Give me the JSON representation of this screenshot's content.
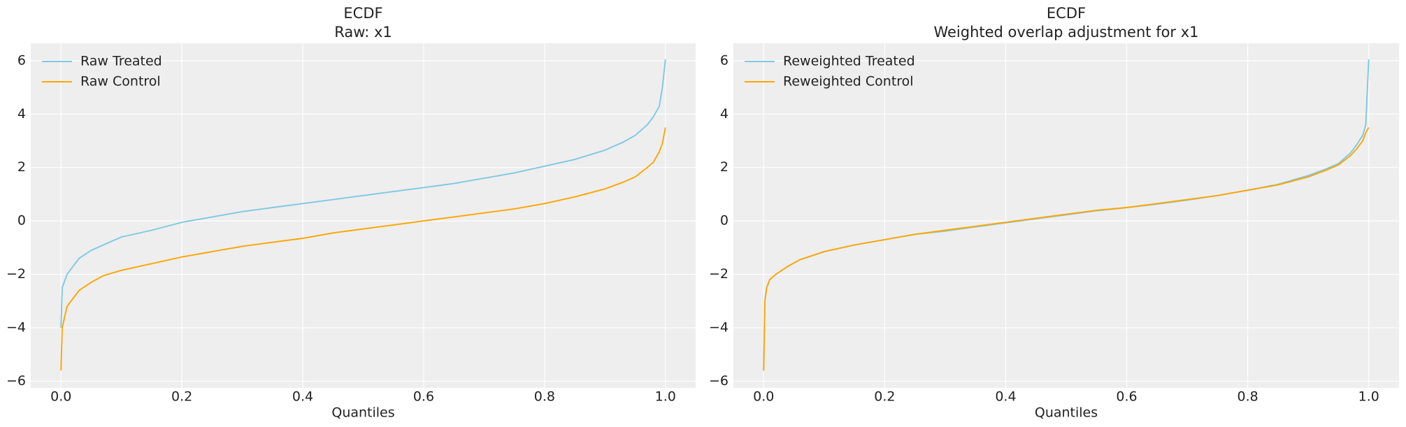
{
  "chart_data": [
    {
      "type": "line",
      "title": "ECDF",
      "subtitle": "Raw: x1",
      "xlabel": "Quantiles",
      "x": [
        0,
        0.002,
        0.01,
        0.02,
        0.03,
        0.05,
        0.07,
        0.1,
        0.15,
        0.2,
        0.25,
        0.3,
        0.35,
        0.4,
        0.45,
        0.5,
        0.55,
        0.6,
        0.65,
        0.7,
        0.75,
        0.8,
        0.85,
        0.9,
        0.93,
        0.95,
        0.97,
        0.98,
        0.99,
        0.995,
        1.0
      ],
      "series": [
        {
          "name": "Raw Treated",
          "color": "#7ec8e3",
          "values": [
            -4.0,
            -2.5,
            -2.0,
            -1.7,
            -1.4,
            -1.1,
            -0.9,
            -0.6,
            -0.35,
            -0.05,
            0.15,
            0.35,
            0.5,
            0.65,
            0.8,
            0.95,
            1.1,
            1.25,
            1.4,
            1.6,
            1.8,
            2.05,
            2.3,
            2.65,
            2.95,
            3.2,
            3.6,
            3.9,
            4.3,
            5.0,
            6.05
          ]
        },
        {
          "name": "Raw Control",
          "color": "#ffa500",
          "values": [
            -5.6,
            -4.0,
            -3.2,
            -2.9,
            -2.6,
            -2.3,
            -2.05,
            -1.85,
            -1.6,
            -1.35,
            -1.15,
            -0.95,
            -0.8,
            -0.65,
            -0.45,
            -0.3,
            -0.15,
            0.0,
            0.15,
            0.3,
            0.45,
            0.65,
            0.9,
            1.2,
            1.45,
            1.65,
            2.0,
            2.2,
            2.6,
            2.9,
            3.5
          ]
        }
      ],
      "xlim": [
        -0.05,
        1.05
      ],
      "ylim": [
        -6.25,
        6.65
      ],
      "xticks": [
        {
          "value": 0,
          "label": "0.0"
        },
        0.2,
        0.4,
        0.6,
        0.8,
        {
          "value": 1,
          "label": "1.0"
        }
      ],
      "yticks": [
        {
          "value": -6,
          "label": "−6"
        },
        {
          "value": -4,
          "label": "−4"
        },
        {
          "value": -2,
          "label": "−2"
        },
        0,
        2,
        4,
        6
      ],
      "grid": true,
      "legend": "upper left"
    },
    {
      "type": "line",
      "title": "ECDF",
      "subtitle": "Weighted overlap adjustment for x1",
      "xlabel": "Quantiles",
      "x": [
        0,
        0.002,
        0.005,
        0.01,
        0.02,
        0.04,
        0.06,
        0.1,
        0.15,
        0.2,
        0.25,
        0.3,
        0.35,
        0.4,
        0.45,
        0.5,
        0.55,
        0.6,
        0.65,
        0.7,
        0.75,
        0.8,
        0.85,
        0.9,
        0.93,
        0.95,
        0.97,
        0.98,
        0.99,
        0.995,
        1.0
      ],
      "series": [
        {
          "name": "Reweighted Treated",
          "color": "#7ec8e3",
          "values": [
            -5.6,
            -3.0,
            -2.5,
            -2.2,
            -2.0,
            -1.7,
            -1.45,
            -1.15,
            -0.9,
            -0.7,
            -0.5,
            -0.38,
            -0.22,
            -0.07,
            0.08,
            0.23,
            0.38,
            0.5,
            0.63,
            0.78,
            0.95,
            1.15,
            1.37,
            1.7,
            1.95,
            2.15,
            2.55,
            2.85,
            3.2,
            3.6,
            6.05
          ]
        },
        {
          "name": "Reweighted Control",
          "color": "#ffa500",
          "values": [
            -5.6,
            -3.0,
            -2.5,
            -2.2,
            -2.0,
            -1.7,
            -1.45,
            -1.15,
            -0.9,
            -0.7,
            -0.5,
            -0.35,
            -0.2,
            -0.05,
            0.1,
            0.25,
            0.4,
            0.5,
            0.65,
            0.8,
            0.95,
            1.15,
            1.35,
            1.65,
            1.9,
            2.1,
            2.45,
            2.7,
            3.0,
            3.3,
            3.5
          ]
        }
      ],
      "xlim": [
        -0.05,
        1.05
      ],
      "ylim": [
        -6.25,
        6.65
      ],
      "xticks": [
        {
          "value": 0,
          "label": "0.0"
        },
        0.2,
        0.4,
        0.6,
        0.8,
        {
          "value": 1,
          "label": "1.0"
        }
      ],
      "yticks": [
        {
          "value": -6,
          "label": "−6"
        },
        {
          "value": -4,
          "label": "−4"
        },
        {
          "value": -2,
          "label": "−2"
        },
        0,
        2,
        4,
        6
      ],
      "grid": true,
      "legend": "upper left"
    }
  ]
}
